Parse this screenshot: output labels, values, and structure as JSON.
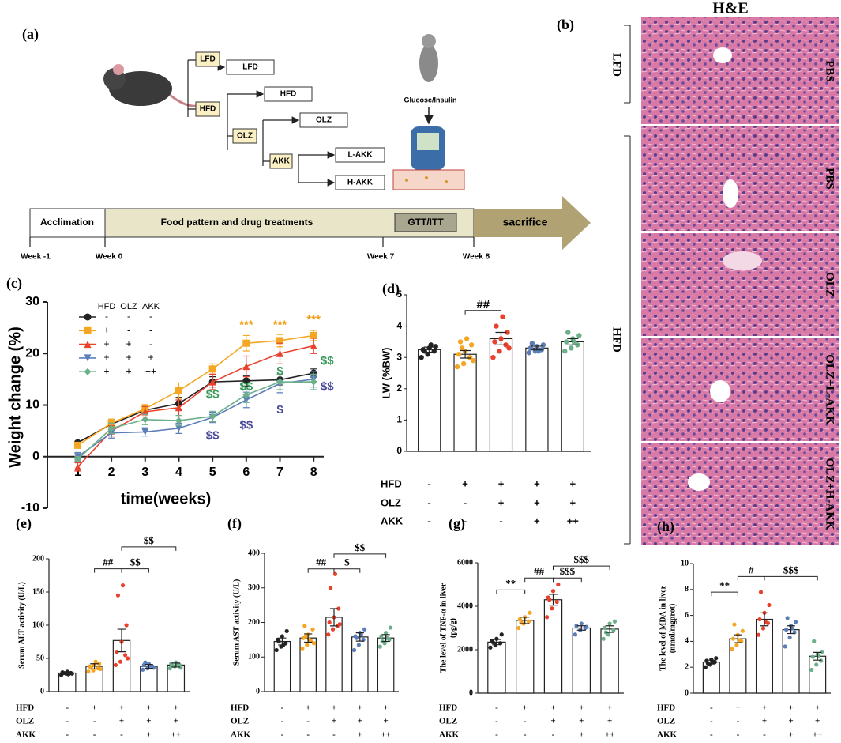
{
  "panel_a": {
    "label": "(a)",
    "diet_boxes": [
      "LFD",
      "HFD",
      "OLZ",
      "AKK"
    ],
    "group_boxes": [
      "LFD",
      "HFD",
      "OLZ",
      "L-AKK",
      "H-AKK"
    ],
    "injection": "Glucose/Insulin",
    "timeline": [
      "Acclimation",
      "Food pattern and drug treatments",
      "GTT/ITT",
      "sacrifice"
    ],
    "weeks": [
      "Week -1",
      "Week 0",
      "Week 7",
      "Week 8"
    ]
  },
  "panel_b": {
    "label": "(b)",
    "title": "H&E",
    "groups": [
      "LFD",
      "HFD"
    ],
    "images": [
      "PBS",
      "PBS",
      "OLZ",
      "OLZ+L-AKK",
      "OLZ+H-AKK"
    ]
  },
  "chart_data": [
    {
      "type": "line",
      "panel": "(c)",
      "ylabel": "Weight change (%)",
      "xlabel": "time(weeks)",
      "x": [
        1,
        2,
        3,
        4,
        5,
        6,
        7,
        8
      ],
      "xlim": [
        0.1,
        8.3
      ],
      "xticks": [
        1,
        2,
        3,
        4,
        5,
        6,
        7,
        8
      ],
      "ylim": [
        -10,
        30
      ],
      "yticks": [
        -10,
        0,
        10,
        20,
        30
      ],
      "legend_header": [
        "HFD",
        "OLZ",
        "AKK"
      ],
      "series": [
        {
          "levels": [
            "-",
            "-",
            "-"
          ],
          "color": "#222222",
          "marker": "circle",
          "values": [
            2.7,
            6.3,
            9,
            10.3,
            14.5,
            14.7,
            14.9,
            16.2
          ],
          "errors": [
            0.3,
            0.8,
            0.8,
            1.2,
            1,
            1,
            1,
            0.8
          ]
        },
        {
          "levels": [
            "+",
            "-",
            "-"
          ],
          "color": "#f5a623",
          "marker": "square",
          "values": [
            2.2,
            6.5,
            9.3,
            12.8,
            17,
            22,
            22.5,
            23.5
          ],
          "errors": [
            0.3,
            0.8,
            0.8,
            1.5,
            1,
            1.5,
            1.2,
            1
          ]
        },
        {
          "levels": [
            "+",
            "+",
            "-"
          ],
          "color": "#e8412c",
          "marker": "triangle",
          "values": [
            -2,
            5,
            8.7,
            9.5,
            14.5,
            17.5,
            20,
            21.5
          ],
          "errors": [
            0.8,
            1,
            1,
            1.5,
            1.5,
            2,
            2,
            1.5
          ]
        },
        {
          "levels": [
            "+",
            "+",
            "+"
          ],
          "color": "#5b7db8",
          "marker": "down",
          "values": [
            0,
            4.6,
            4.8,
            5.5,
            7.6,
            11,
            14.2,
            15
          ],
          "errors": [
            0.8,
            1,
            0.8,
            1,
            1,
            1.5,
            1.8,
            1.5
          ]
        },
        {
          "levels": [
            "+",
            "+",
            "++"
          ],
          "color": "#6bb08a",
          "marker": "diamond",
          "values": [
            -0.5,
            5.5,
            7.2,
            7,
            7.8,
            12,
            14.5,
            14.5
          ],
          "errors": [
            0.5,
            1,
            1,
            1,
            1,
            1.5,
            1.5,
            1.5
          ]
        }
      ],
      "annotations": [
        {
          "x": 6,
          "y": 25.5,
          "text": "***",
          "color": "#f39c12"
        },
        {
          "x": 7,
          "y": 25.5,
          "text": "***",
          "color": "#f39c12"
        },
        {
          "x": 8,
          "y": 26.5,
          "text": "***",
          "color": "#f39c12"
        },
        {
          "x": 5,
          "y": 12,
          "text": "$$",
          "color": "#3a9a5b"
        },
        {
          "x": 6,
          "y": 13.5,
          "text": "$$",
          "color": "#3a9a5b"
        },
        {
          "x": 7,
          "y": 16.5,
          "text": "$",
          "color": "#3a9a5b"
        },
        {
          "x": 8.4,
          "y": 18.5,
          "text": "$$",
          "color": "#3a9a5b"
        },
        {
          "x": 5,
          "y": 4,
          "text": "$$",
          "color": "#4a4a9a"
        },
        {
          "x": 6,
          "y": 6,
          "text": "$$",
          "color": "#4a4a9a"
        },
        {
          "x": 7,
          "y": 9,
          "text": "$",
          "color": "#4a4a9a"
        },
        {
          "x": 8.4,
          "y": 13.5,
          "text": "$$",
          "color": "#4a4a9a"
        }
      ]
    },
    {
      "type": "bar",
      "panel": "(d)",
      "ylabel": [
        "LW (%BW)"
      ],
      "ylim": [
        0,
        5
      ],
      "yticks": [
        0,
        1,
        2,
        3,
        4,
        5
      ],
      "values": [
        3.25,
        3.1,
        3.6,
        3.3,
        3.5
      ],
      "errors": [
        0.08,
        0.12,
        0.2,
        0.06,
        0.1
      ],
      "colors": [
        "#222222",
        "#f5a623",
        "#e8412c",
        "#5b7db8",
        "#6bb08a"
      ],
      "points": [
        [
          3.0,
          3.1,
          3.2,
          3.25,
          3.3,
          3.35,
          3.2,
          3.4
        ],
        [
          2.7,
          2.8,
          3.0,
          3.1,
          3.2,
          3.4,
          3.5,
          3.6,
          2.9,
          3.3
        ],
        [
          3.0,
          3.2,
          3.4,
          3.5,
          3.6,
          3.8,
          4.0,
          4.3,
          3.3
        ],
        [
          3.15,
          3.2,
          3.25,
          3.3,
          3.35,
          3.4,
          3.45,
          3.2
        ],
        [
          3.2,
          3.3,
          3.4,
          3.5,
          3.6,
          3.7,
          3.8,
          3.5
        ]
      ],
      "factors": [
        {
          "name": "HFD",
          "levels": [
            "-",
            "+",
            "+",
            "+",
            "+"
          ]
        },
        {
          "name": "OLZ",
          "levels": [
            "-",
            "-",
            "+",
            "+",
            "+"
          ]
        },
        {
          "name": "AKK",
          "levels": [
            "-",
            "-",
            "-",
            "+",
            "++"
          ]
        }
      ],
      "brackets": [
        {
          "from": 1,
          "to": 2,
          "y": 4.5,
          "text": "##"
        }
      ]
    },
    {
      "type": "bar",
      "panel": "(e)",
      "ylabel": [
        "Serum ALT activity (U/L)"
      ],
      "ylim": [
        0,
        200
      ],
      "yticks": [
        0,
        50,
        100,
        150,
        200
      ],
      "values": [
        28,
        38,
        77,
        38,
        40
      ],
      "errors": [
        2,
        4,
        17,
        3,
        3
      ],
      "colors": [
        "#222222",
        "#f5a623",
        "#e8412c",
        "#5b7db8",
        "#6bb08a"
      ],
      "points": [
        [
          25,
          27,
          28,
          29,
          30,
          27,
          28,
          26
        ],
        [
          30,
          32,
          35,
          38,
          40,
          42,
          36,
          45,
          34
        ],
        [
          40,
          45,
          55,
          60,
          75,
          100,
          145,
          160,
          50
        ],
        [
          33,
          35,
          38,
          40,
          42,
          36,
          44,
          39
        ],
        [
          35,
          38,
          40,
          42,
          44,
          36,
          39,
          41
        ]
      ],
      "factors": [
        {
          "name": "HFD",
          "levels": [
            "-",
            "+",
            "+",
            "+",
            "+"
          ]
        },
        {
          "name": "OLZ",
          "levels": [
            "-",
            "-",
            "+",
            "+",
            "+"
          ]
        },
        {
          "name": "AKK",
          "levels": [
            "-",
            "-",
            "-",
            "+",
            "++"
          ]
        }
      ],
      "brackets": [
        {
          "from": 1,
          "to": 2,
          "y": 185,
          "text": "##"
        },
        {
          "from": 2,
          "to": 3,
          "y": 185,
          "text": "$$"
        },
        {
          "from": 2,
          "to": 4,
          "y": 218,
          "text": "$$"
        }
      ]
    },
    {
      "type": "bar",
      "panel": "(f)",
      "ylabel": [
        "Serum AST activity (U/L)"
      ],
      "ylim": [
        0,
        400
      ],
      "yticks": [
        0,
        100,
        200,
        300,
        400
      ],
      "values": [
        145,
        155,
        215,
        158,
        155
      ],
      "errors": [
        10,
        12,
        25,
        12,
        10
      ],
      "colors": [
        "#222222",
        "#f5a623",
        "#e8412c",
        "#5b7db8",
        "#6bb08a"
      ],
      "points": [
        [
          120,
          130,
          140,
          150,
          160,
          175,
          145,
          135
        ],
        [
          125,
          135,
          145,
          155,
          165,
          180,
          190,
          150,
          140,
          160
        ],
        [
          165,
          180,
          190,
          200,
          215,
          240,
          300,
          340,
          195
        ],
        [
          120,
          135,
          150,
          160,
          170,
          180,
          155,
          165
        ],
        [
          130,
          140,
          150,
          160,
          170,
          185,
          145,
          155
        ]
      ],
      "factors": [
        {
          "name": "HFD",
          "levels": [
            "-",
            "+",
            "+",
            "+",
            "+"
          ]
        },
        {
          "name": "OLZ",
          "levels": [
            "-",
            "-",
            "+",
            "+",
            "+"
          ]
        },
        {
          "name": "AKK",
          "levels": [
            "-",
            "-",
            "-",
            "+",
            "++"
          ]
        }
      ],
      "brackets": [
        {
          "from": 1,
          "to": 2,
          "y": 355,
          "text": "##"
        },
        {
          "from": 2,
          "to": 3,
          "y": 355,
          "text": "$"
        },
        {
          "from": 2,
          "to": 4,
          "y": 398,
          "text": "$$"
        }
      ]
    },
    {
      "type": "bar",
      "panel": "(g)",
      "ylabel": [
        "The level of TNF-α in liver",
        "(pg/g)"
      ],
      "ylim": [
        0,
        6000
      ],
      "yticks": [
        0,
        2000,
        4000,
        6000
      ],
      "values": [
        2350,
        3350,
        4300,
        3000,
        2950
      ],
      "errors": [
        120,
        150,
        250,
        100,
        150
      ],
      "colors": [
        "#222222",
        "#f5a623",
        "#e8412c",
        "#5b7db8",
        "#6bb08a"
      ],
      "points": [
        [
          2100,
          2200,
          2300,
          2400,
          2500,
          2700,
          2350
        ],
        [
          3000,
          3200,
          3300,
          3400,
          3500,
          3700,
          3250
        ],
        [
          3500,
          3900,
          4200,
          4400,
          4700,
          5000,
          4300
        ],
        [
          2700,
          2900,
          3000,
          3100,
          3200,
          3050
        ],
        [
          2500,
          2700,
          2900,
          3000,
          3200,
          3300,
          2800
        ]
      ],
      "factors": [
        {
          "name": "HFD",
          "levels": [
            "-",
            "+",
            "+",
            "+",
            "+"
          ]
        },
        {
          "name": "OLZ",
          "levels": [
            "-",
            "-",
            "+",
            "+",
            "+"
          ]
        },
        {
          "name": "AKK",
          "levels": [
            "-",
            "-",
            "-",
            "+",
            "++"
          ]
        }
      ],
      "brackets": [
        {
          "from": 0,
          "to": 1,
          "y": 4750,
          "text": "**"
        },
        {
          "from": 1,
          "to": 2,
          "y": 5300,
          "text": "##"
        },
        {
          "from": 2,
          "to": 3,
          "y": 5300,
          "text": "$$$"
        },
        {
          "from": 2,
          "to": 4,
          "y": 5850,
          "text": "$$$"
        }
      ]
    },
    {
      "type": "bar",
      "panel": "(h)",
      "ylabel": [
        "The level of MDA in liver",
        "(nmol/mgprot)"
      ],
      "ylim": [
        0,
        10
      ],
      "yticks": [
        0,
        2,
        4,
        6,
        8,
        10
      ],
      "values": [
        2.4,
        4.2,
        5.7,
        4.9,
        2.85
      ],
      "errors": [
        0.15,
        0.3,
        0.5,
        0.3,
        0.3
      ],
      "colors": [
        "#222222",
        "#f5a623",
        "#e8412c",
        "#5b7db8",
        "#6bb08a"
      ],
      "points": [
        [
          2.0,
          2.2,
          2.4,
          2.5,
          2.6,
          2.7,
          2.3,
          2.4
        ],
        [
          3.4,
          3.7,
          4.0,
          4.2,
          4.5,
          4.8,
          5.3,
          4.1
        ],
        [
          4.5,
          5.0,
          5.4,
          5.7,
          6.2,
          6.8,
          7.8,
          5.5
        ],
        [
          3.6,
          4.3,
          4.7,
          4.9,
          5.2,
          5.5,
          5.8,
          5.0
        ],
        [
          1.8,
          2.2,
          2.5,
          2.8,
          3.0,
          3.2,
          4.0,
          2.9
        ]
      ],
      "factors": [
        {
          "name": "HFD",
          "levels": [
            "-",
            "+",
            "+",
            "+",
            "+"
          ]
        },
        {
          "name": "OLZ",
          "levels": [
            "-",
            "-",
            "+",
            "+",
            "+"
          ]
        },
        {
          "name": "AKK",
          "levels": [
            "-",
            "-",
            "-",
            "+",
            "++"
          ]
        }
      ],
      "brackets": [
        {
          "from": 0,
          "to": 1,
          "y": 7.8,
          "text": "**"
        },
        {
          "from": 1,
          "to": 2,
          "y": 9,
          "text": "#"
        },
        {
          "from": 2,
          "to": 4,
          "y": 9,
          "text": "$$$"
        }
      ]
    }
  ]
}
